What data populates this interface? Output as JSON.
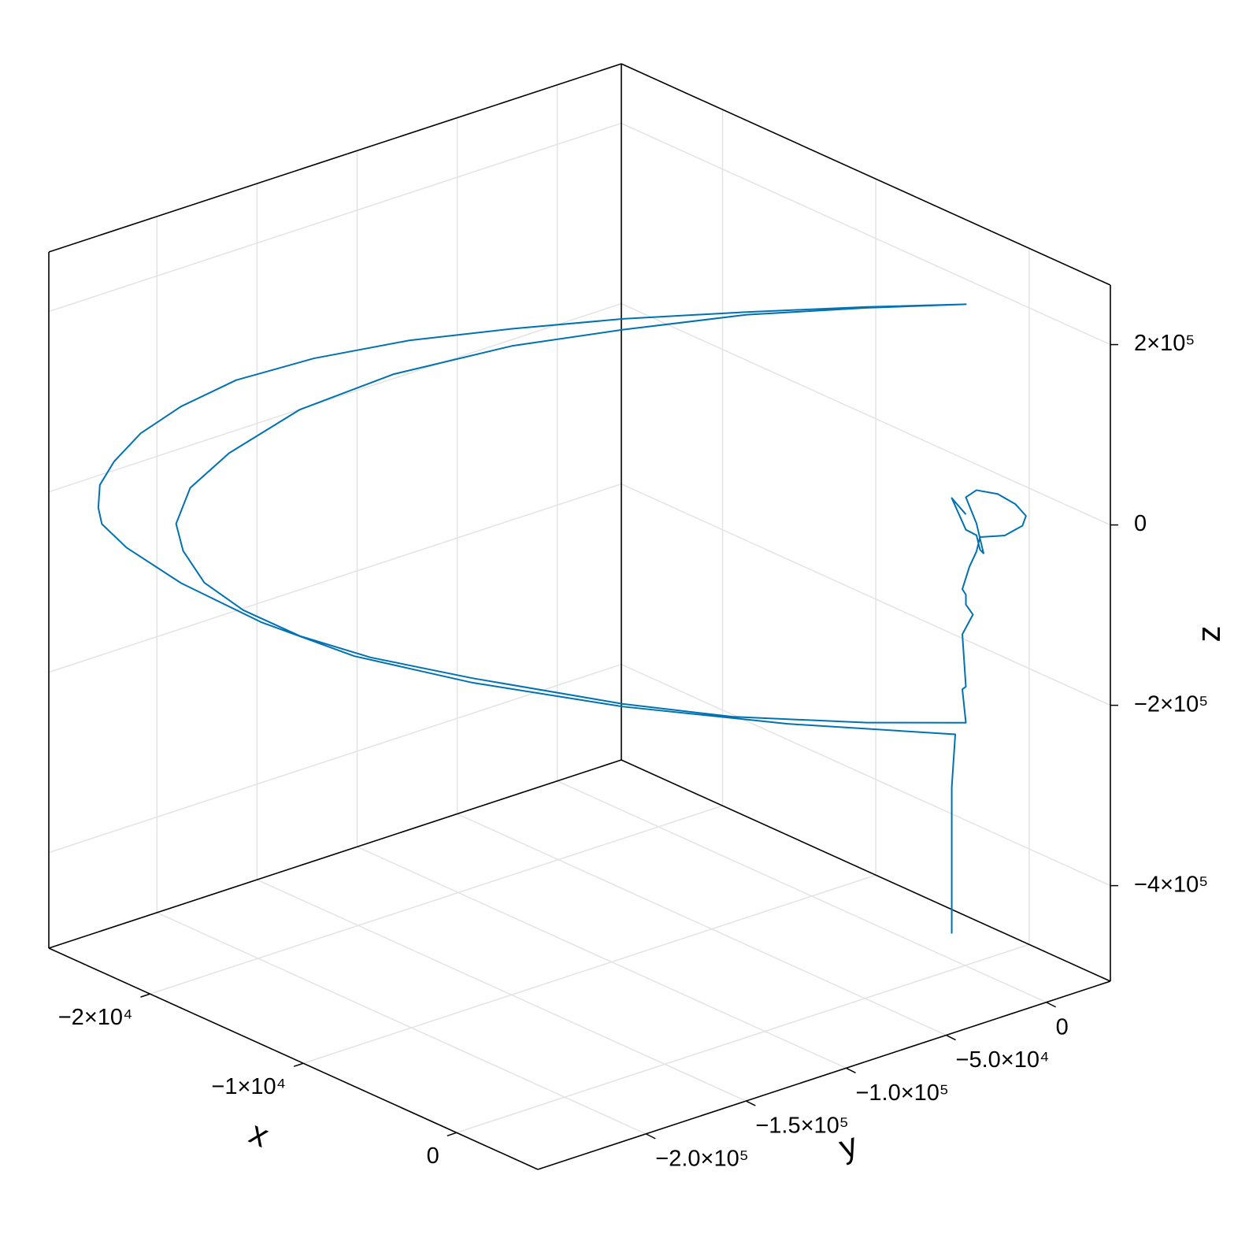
{
  "chart_data": {
    "type": "line3d",
    "xlabel": "x",
    "ylabel": "y",
    "zlabel": "z",
    "color": "#0072b2",
    "grid": true,
    "xlim": [
      -26600,
      5300
    ],
    "ylim": [
      -254000,
      32000
    ],
    "zlim": [
      -506000,
      266000
    ],
    "xticks": [
      {
        "value": -20000,
        "label": "−2×10⁴"
      },
      {
        "value": -10000,
        "label": "−1×10⁴"
      },
      0
    ],
    "yticks": [
      {
        "value": -200000,
        "label": "−2.0×10⁵"
      },
      {
        "value": -150000,
        "label": "−1.5×10⁵"
      },
      {
        "value": -100000,
        "label": "−1.0×10⁵"
      },
      {
        "value": -50000,
        "label": "−5.0×10⁴"
      },
      0
    ],
    "zticks": [
      {
        "value": -400000,
        "label": "−4×10⁵"
      },
      {
        "value": -200000,
        "label": "−2×10⁵"
      },
      0,
      {
        "value": 200000,
        "label": "2×10⁵"
      }
    ],
    "x": [
      -1000,
      -1000,
      -1000,
      -900,
      -5700,
      -10300,
      -14600,
      -17900,
      -20600,
      -22800,
      -24400,
      -25100,
      -25200,
      -25100,
      -24700,
      -24000,
      -22800,
      -21300,
      -19100,
      -16400,
      -13500,
      -10300,
      -6800,
      -3400,
      -600,
      -3400,
      -6800,
      -10300,
      -13500,
      -16800,
      -19500,
      -21500,
      -22600,
      -23000,
      -22800,
      -22200,
      -21100,
      -19500,
      -17500,
      -14600,
      -10300,
      -7200,
      -3400,
      -600,
      -700,
      -600,
      -700,
      -400,
      -600,
      -600,
      -700,
      -500,
      -300,
      -200,
      500,
      1000,
      1100,
      800,
      300,
      -300,
      -600,
      -300,
      -100,
      -200,
      -300,
      -600,
      -1000,
      -600
    ],
    "y": [
      1000,
      1000,
      1000,
      2000,
      -45000,
      -92000,
      -134000,
      -168000,
      -194000,
      -217000,
      -232000,
      -239000,
      -240000,
      -240000,
      -236000,
      -228000,
      -217000,
      -201000,
      -179000,
      -152000,
      -123000,
      -92000,
      -57000,
      -23000,
      5000,
      -23000,
      -57000,
      -92000,
      -123000,
      -157000,
      -183000,
      -203000,
      -214000,
      -218000,
      -216000,
      -210000,
      -199000,
      -183000,
      -163000,
      -134000,
      -92000,
      -61000,
      -23000,
      5000,
      4000,
      5000,
      4000,
      7000,
      5000,
      5000,
      4000,
      6000,
      8000,
      9000,
      16000,
      21000,
      22000,
      19000,
      14000,
      8000,
      5000,
      8000,
      10000,
      9000,
      8000,
      5000,
      1000,
      5000
    ],
    "z": [
      -479000,
      -404000,
      -317000,
      -258000,
      -249000,
      -231000,
      -207000,
      -178000,
      -142000,
      -99000,
      -61000,
      -35000,
      -17000,
      9000,
      35000,
      66000,
      97000,
      126000,
      151000,
      172000,
      186000,
      199000,
      208000,
      215000,
      219000,
      214000,
      205000,
      187000,
      167000,
      135000,
      94000,
      45000,
      6000,
      -34000,
      -64000,
      -99000,
      -129000,
      -157000,
      -180000,
      -202000,
      -228000,
      -241000,
      -246000,
      -245000,
      -208000,
      -205000,
      -147000,
      -125000,
      -114000,
      -103000,
      -97000,
      -72000,
      -55000,
      -39000,
      -37000,
      -26000,
      -15000,
      -2000,
      9000,
      13000,
      5000,
      -24000,
      -57000,
      -53000,
      -37000,
      -31000,
      4000,
      -14000
    ]
  }
}
